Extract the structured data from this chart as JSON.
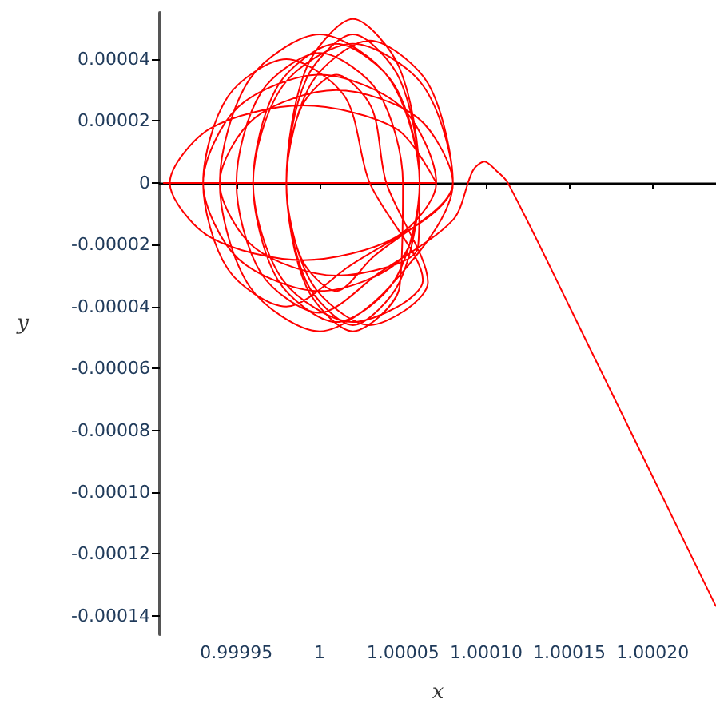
{
  "chart_data": {
    "type": "line",
    "xlabel": "x",
    "ylabel": "y",
    "xlim": [
      0.999904,
      1.000238
    ],
    "ylim": [
      -0.000146,
      5.5e-05
    ],
    "xticks": [
      {
        "value": 0.99995,
        "label": "0.99995"
      },
      1,
      {
        "value": 1.00005,
        "label": "1.00005"
      },
      {
        "value": 1.0001,
        "label": "1.00010"
      },
      {
        "value": 1.00015,
        "label": "1.00015"
      },
      {
        "value": 1.0002,
        "label": "1.00020"
      }
    ],
    "yticks": [
      {
        "value": 4e-05,
        "label": "0.00004"
      },
      {
        "value": 2e-05,
        "label": "0.00002"
      },
      0,
      {
        "value": -2e-05,
        "label": "-0.00002"
      },
      {
        "value": -4e-05,
        "label": "-0.00004"
      },
      {
        "value": -6e-05,
        "label": "-0.00006"
      },
      {
        "value": -8e-05,
        "label": "-0.00008"
      },
      {
        "value": -0.0001,
        "label": "-0.00010"
      },
      {
        "value": -0.00012,
        "label": "-0.00012"
      },
      {
        "value": -0.00014,
        "label": "-0.00014"
      }
    ],
    "series": [
      {
        "color": "#ff0000",
        "x": [
          0.999906,
          1.00007,
          1.000046,
          0.99999,
          0.999934,
          0.99991,
          0.999934,
          0.99999,
          1.000046,
          1.00007,
          1.000049,
          1,
          0.999951,
          0.99993,
          0.999951,
          1,
          1.000049,
          1.00006,
          1.000045,
          1.00001,
          0.999975,
          0.99996,
          0.999975,
          1.00001,
          1.000045,
          1.00006,
          1.000048,
          1.00002,
          0.999992,
          0.99998,
          0.999992,
          1.00002,
          1.000048,
          1.00006,
          1.000042,
          1,
          0.999958,
          0.99994,
          0.999958,
          1,
          1.000042,
          1.00008,
          1.000062,
          1.00002,
          0.999978,
          0.99996,
          0.999978,
          1.00002,
          1.000062,
          1.00003,
          1.000015,
          0.99998,
          0.999945,
          0.99993,
          0.999945,
          0.99998,
          1.000015,
          1.00008,
          1.000065,
          1.00003,
          0.999995,
          0.99998,
          0.999995,
          1.00003,
          1.000065,
          1.00004,
          1.000031,
          1.00001,
          0.999989,
          0.99998,
          0.999989,
          1.00001,
          1.000031,
          1.00008,
          1.000059,
          1.00001,
          0.999961,
          0.99994,
          0.999961,
          1.00001,
          1.000059,
          1.00006,
          1.000048,
          1.00002,
          0.999992,
          0.99998,
          0.999992,
          1.00002,
          1.000048,
          1.00005,
          1.000035,
          1,
          0.999965,
          0.99995,
          0.999965,
          1,
          1.000035,
          1.00008,
          1.000092,
          1.000099,
          1.000106,
          1.000113,
          1.00015,
          1.000238
        ],
        "values": [
          0,
          0,
          1.75e-05,
          2.5e-05,
          1.75e-05,
          0,
          -1.75e-05,
          -2.5e-05,
          -1.75e-05,
          0,
          2.45e-05,
          3.5e-05,
          2.45e-05,
          0,
          -2.45e-05,
          -3.5e-05,
          -2.45e-05,
          0,
          3.15e-05,
          4.5e-05,
          3.15e-05,
          0,
          -3.15e-05,
          -4.5e-05,
          -3.15e-05,
          0,
          3.71e-05,
          5.3e-05,
          3.71e-05,
          0,
          -3.2e-05,
          -4.6e-05,
          -3.2e-05,
          0,
          3.36e-05,
          4.8e-05,
          3.36e-05,
          0,
          -3.36e-05,
          -4.8e-05,
          -3.36e-05,
          0,
          3.15e-05,
          4.5e-05,
          3.15e-05,
          0,
          -3.15e-05,
          -4.5e-05,
          -3.15e-05,
          0,
          2.8e-05,
          4e-05,
          2.8e-05,
          0,
          -2.8e-05,
          -4e-05,
          -2.8e-05,
          0,
          3.22e-05,
          4.6e-05,
          3.22e-05,
          0,
          -3.22e-05,
          -4.6e-05,
          -3.22e-05,
          0,
          2.45e-05,
          3.5e-05,
          2.45e-05,
          0,
          -2.45e-05,
          -3.5e-05,
          -2.45e-05,
          0,
          2.1e-05,
          3e-05,
          2.1e-05,
          0,
          -2.1e-05,
          -3e-05,
          -2.1e-05,
          0,
          3.36e-05,
          4.8e-05,
          3.36e-05,
          0,
          -3.36e-05,
          -4.8e-05,
          -3.36e-05,
          0,
          2.94e-05,
          4.2e-05,
          2.94e-05,
          0,
          -2.94e-05,
          -4.2e-05,
          -2.94e-05,
          -1.2e-05,
          4e-06,
          6.9e-06,
          4e-06,
          0,
          -4e-05,
          -0.000137
        ]
      }
    ]
  }
}
